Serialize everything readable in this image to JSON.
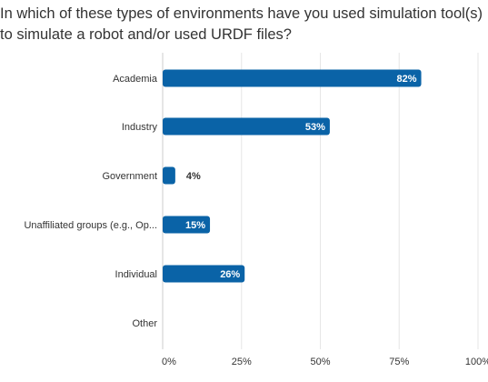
{
  "title_lines": [
    "In which of these types of environments have you used simulation tool(s)",
    "to simulate a robot and/or used URDF files?"
  ],
  "chart_data": {
    "type": "bar",
    "orientation": "horizontal",
    "title": "In which of these types of environments have you used simulation tool(s) to simulate a robot and/or used URDF files?",
    "categories": [
      "Academia",
      "Industry",
      "Government",
      "Unaffiliated groups (e.g., Op...",
      "Individual",
      "Other"
    ],
    "values": [
      82,
      53,
      4,
      15,
      26,
      0
    ],
    "value_labels": [
      "82%",
      "53%",
      "4%",
      "15%",
      "26%",
      ""
    ],
    "xlim": [
      0,
      100
    ],
    "ticks": [
      0,
      25,
      50,
      75,
      100
    ],
    "tick_labels": [
      "0%",
      "25%",
      "50%",
      "75%",
      "100%"
    ],
    "grid": true,
    "bar_color": "#0a63a7",
    "label_inside_color": "#ffffff",
    "label_outside_color": "#333333"
  }
}
